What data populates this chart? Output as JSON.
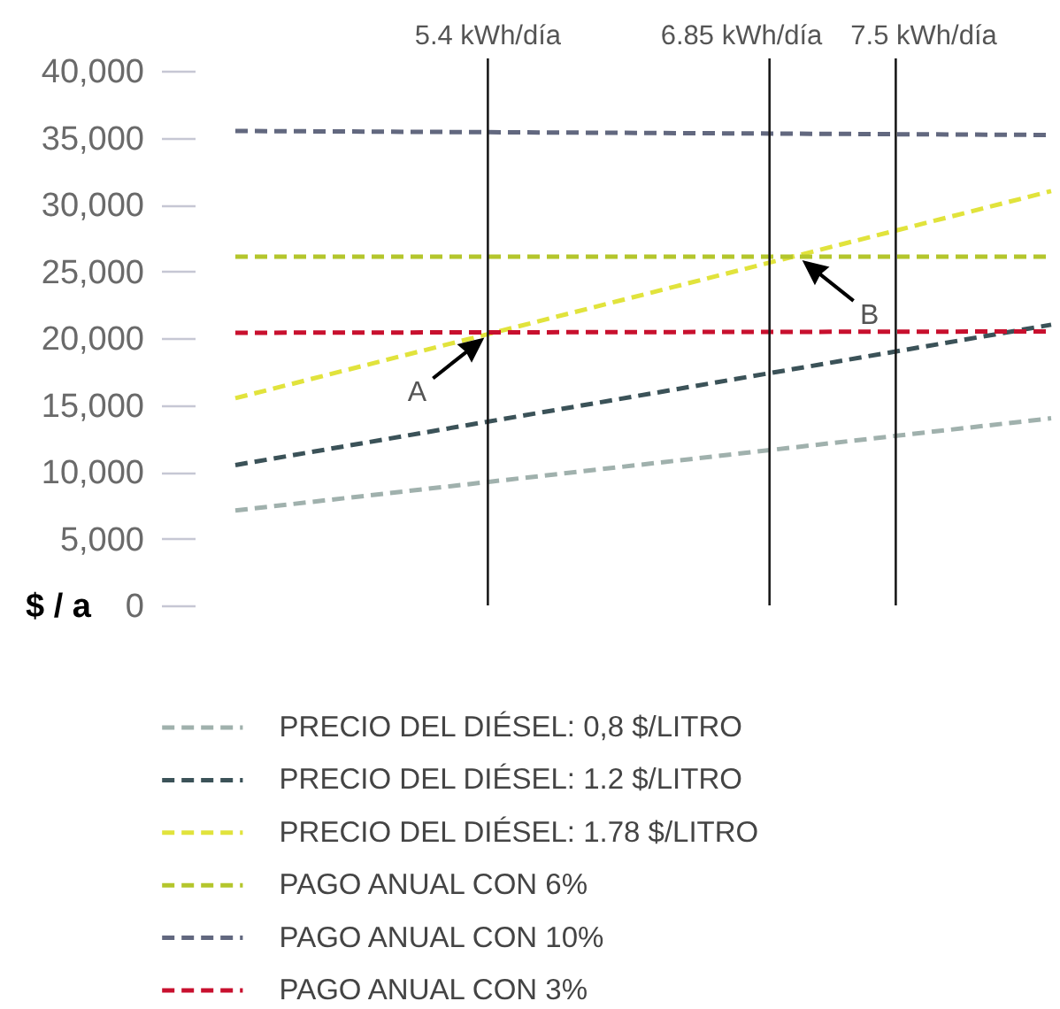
{
  "chart_data": {
    "type": "line",
    "ylabel": "$ / a",
    "x": [
      4.1,
      8.3
    ],
    "xlim": [
      4.1,
      8.3
    ],
    "ylim": [
      0,
      40000
    ],
    "yticks": [
      0,
      {
        "value": 5000,
        "label": "5,000"
      },
      {
        "value": 10000,
        "label": "10,000"
      },
      {
        "value": 15000,
        "label": "15,000"
      },
      {
        "value": 20000,
        "label": "20,000"
      },
      {
        "value": 25000,
        "label": "25,000"
      },
      {
        "value": 30000,
        "label": "30,000"
      },
      {
        "value": 35000,
        "label": "35,000"
      },
      {
        "value": 40000,
        "label": "40,000"
      }
    ],
    "tick_labels": "y",
    "legend": "bottom",
    "line_style": "dashed",
    "series": [
      {
        "name": "PRECIO DEL DIÉSEL: 0,8 $/LITRO",
        "color": "#a0b1ad",
        "values": [
          7100,
          14000
        ]
      },
      {
        "name": "PRECIO DEL DIÉSEL: 1.2 $/LITRO",
        "color": "#3b5258",
        "values": [
          10500,
          21000
        ]
      },
      {
        "name": "PRECIO DEL DIÉSEL: 1.78 $/LITRO",
        "color": "#e1e33c",
        "values": [
          15500,
          31000
        ]
      },
      {
        "name": "PAGO ANUAL CON 6%",
        "color": "#b4c62c",
        "values": [
          26100,
          26100
        ]
      },
      {
        "name": "PAGO ANUAL CON 10%",
        "color": "#62687f",
        "values": [
          35500,
          35200
        ]
      },
      {
        "name": "PAGO ANUAL CON 3%",
        "color": "#c8102e",
        "values": [
          20400,
          20500
        ]
      }
    ],
    "ref_lines": [
      {
        "axis": "x",
        "value": 5.4,
        "label": "5.4 kWh/día",
        "color": "#1a1a1a"
      },
      {
        "axis": "x",
        "value": 6.85,
        "label": "6.85 kWh/día",
        "color": "#1a1a1a"
      },
      {
        "axis": "x",
        "value": 7.5,
        "label": "7.5 kWh/día",
        "color": "#1a1a1a"
      }
    ],
    "annotations": [
      {
        "text": "A",
        "x": 5.4,
        "y": 20300
      },
      {
        "text": "B",
        "x": 7.0,
        "y": 26100
      }
    ]
  }
}
